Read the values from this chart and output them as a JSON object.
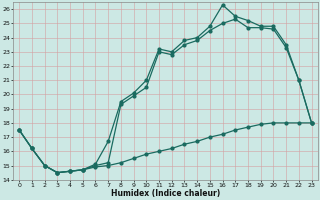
{
  "xlabel": "Humidex (Indice chaleur)",
  "xlim": [
    -0.5,
    23.5
  ],
  "ylim": [
    14,
    26.5
  ],
  "yticks": [
    14,
    15,
    16,
    17,
    18,
    19,
    20,
    21,
    22,
    23,
    24,
    25,
    26
  ],
  "xticks": [
    0,
    1,
    2,
    3,
    4,
    5,
    6,
    7,
    8,
    9,
    10,
    11,
    12,
    13,
    14,
    15,
    16,
    17,
    18,
    19,
    20,
    21,
    22,
    23
  ],
  "bg_color": "#cce8e4",
  "grid_color": "#b8d8d4",
  "line_color": "#1a6b60",
  "line1_y": [
    17.5,
    16.2,
    15.0,
    14.5,
    14.6,
    14.7,
    15.1,
    16.7,
    19.5,
    20.1,
    21.0,
    23.2,
    23.0,
    23.8,
    24.0,
    24.8,
    26.3,
    25.5,
    25.2,
    24.8,
    24.8,
    23.5,
    21.0,
    18.0
  ],
  "line2_y": [
    17.5,
    16.2,
    15.0,
    14.5,
    14.6,
    14.7,
    15.0,
    15.2,
    19.3,
    19.9,
    20.5,
    23.0,
    22.8,
    23.5,
    23.8,
    24.5,
    25.0,
    25.3,
    24.7,
    24.7,
    24.6,
    23.3,
    21.0,
    18.0
  ],
  "line3_y": [
    17.5,
    16.2,
    15.0,
    14.5,
    14.6,
    14.7,
    14.9,
    15.0,
    15.2,
    15.5,
    15.8,
    16.0,
    16.2,
    16.5,
    16.7,
    17.0,
    17.2,
    17.5,
    17.7,
    17.9,
    18.0,
    18.0,
    18.0,
    18.0
  ]
}
